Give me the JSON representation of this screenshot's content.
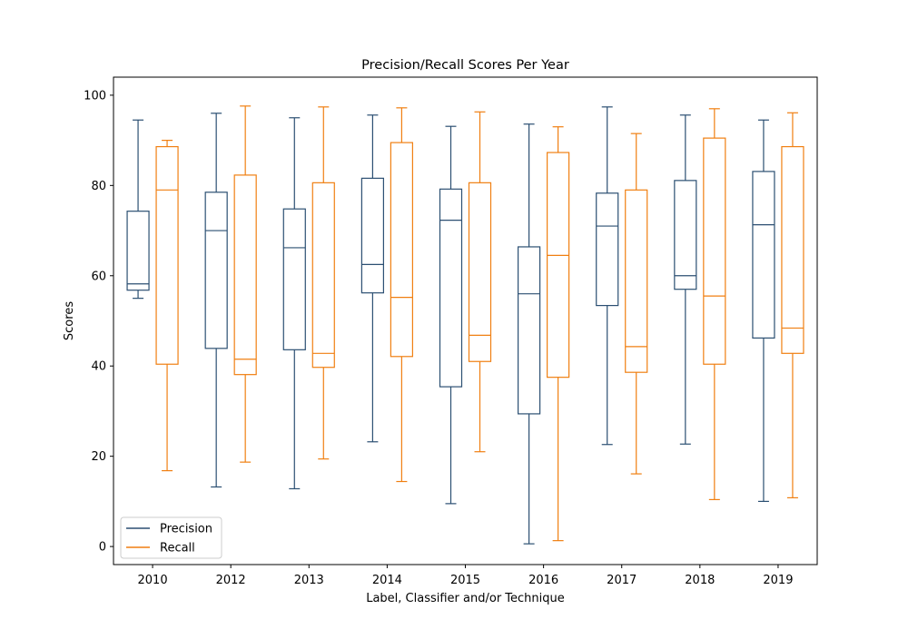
{
  "chart_data": {
    "type": "boxplot",
    "title": "Precision/Recall Scores Per Year",
    "xlabel": "Label, Classifier and/or Technique",
    "ylabel": "Scores",
    "ylim": [
      -4,
      104
    ],
    "yticks": [
      0,
      20,
      40,
      60,
      80,
      100
    ],
    "categories": [
      "2010",
      "2012",
      "2013",
      "2014",
      "2015",
      "2016",
      "2017",
      "2018",
      "2019"
    ],
    "legend": {
      "placement": "lower-left"
    },
    "grid": false,
    "series": [
      {
        "name": "Precision",
        "color": "#2b4f72",
        "boxes": [
          {
            "whislo": 55.0,
            "q1": 56.8,
            "med": 58.2,
            "q3": 74.3,
            "whishi": 94.5
          },
          {
            "whislo": 13.2,
            "q1": 43.9,
            "med": 70.0,
            "q3": 78.5,
            "whishi": 96.0
          },
          {
            "whislo": 12.8,
            "q1": 43.6,
            "med": 66.2,
            "q3": 74.8,
            "whishi": 95.0
          },
          {
            "whislo": 23.2,
            "q1": 56.2,
            "med": 62.5,
            "q3": 81.6,
            "whishi": 95.6
          },
          {
            "whislo": 9.5,
            "q1": 35.4,
            "med": 72.3,
            "q3": 79.2,
            "whishi": 93.1
          },
          {
            "whislo": 0.6,
            "q1": 29.4,
            "med": 56.0,
            "q3": 66.4,
            "whishi": 93.6
          },
          {
            "whislo": 22.6,
            "q1": 53.4,
            "med": 71.0,
            "q3": 78.3,
            "whishi": 97.4
          },
          {
            "whislo": 22.7,
            "q1": 57.0,
            "med": 60.0,
            "q3": 81.1,
            "whishi": 95.6
          },
          {
            "whislo": 10.0,
            "q1": 46.2,
            "med": 71.3,
            "q3": 83.1,
            "whishi": 94.5
          }
        ]
      },
      {
        "name": "Recall",
        "color": "#f07f11",
        "boxes": [
          {
            "whislo": 16.8,
            "q1": 40.4,
            "med": 79.0,
            "q3": 88.6,
            "whishi": 90.0
          },
          {
            "whislo": 18.7,
            "q1": 38.1,
            "med": 41.5,
            "q3": 82.3,
            "whishi": 97.6
          },
          {
            "whislo": 19.4,
            "q1": 39.7,
            "med": 42.8,
            "q3": 80.6,
            "whishi": 97.4
          },
          {
            "whislo": 14.4,
            "q1": 42.1,
            "med": 55.2,
            "q3": 89.5,
            "whishi": 97.2
          },
          {
            "whislo": 21.0,
            "q1": 41.0,
            "med": 46.8,
            "q3": 80.6,
            "whishi": 96.3
          },
          {
            "whislo": 1.3,
            "q1": 37.5,
            "med": 64.5,
            "q3": 87.3,
            "whishi": 93.0
          },
          {
            "whislo": 16.1,
            "q1": 38.6,
            "med": 44.3,
            "q3": 79.0,
            "whishi": 91.5
          },
          {
            "whislo": 10.4,
            "q1": 40.4,
            "med": 55.5,
            "q3": 90.5,
            "whishi": 97.0
          },
          {
            "whislo": 10.8,
            "q1": 42.8,
            "med": 48.4,
            "q3": 88.6,
            "whishi": 96.1
          }
        ]
      }
    ]
  }
}
